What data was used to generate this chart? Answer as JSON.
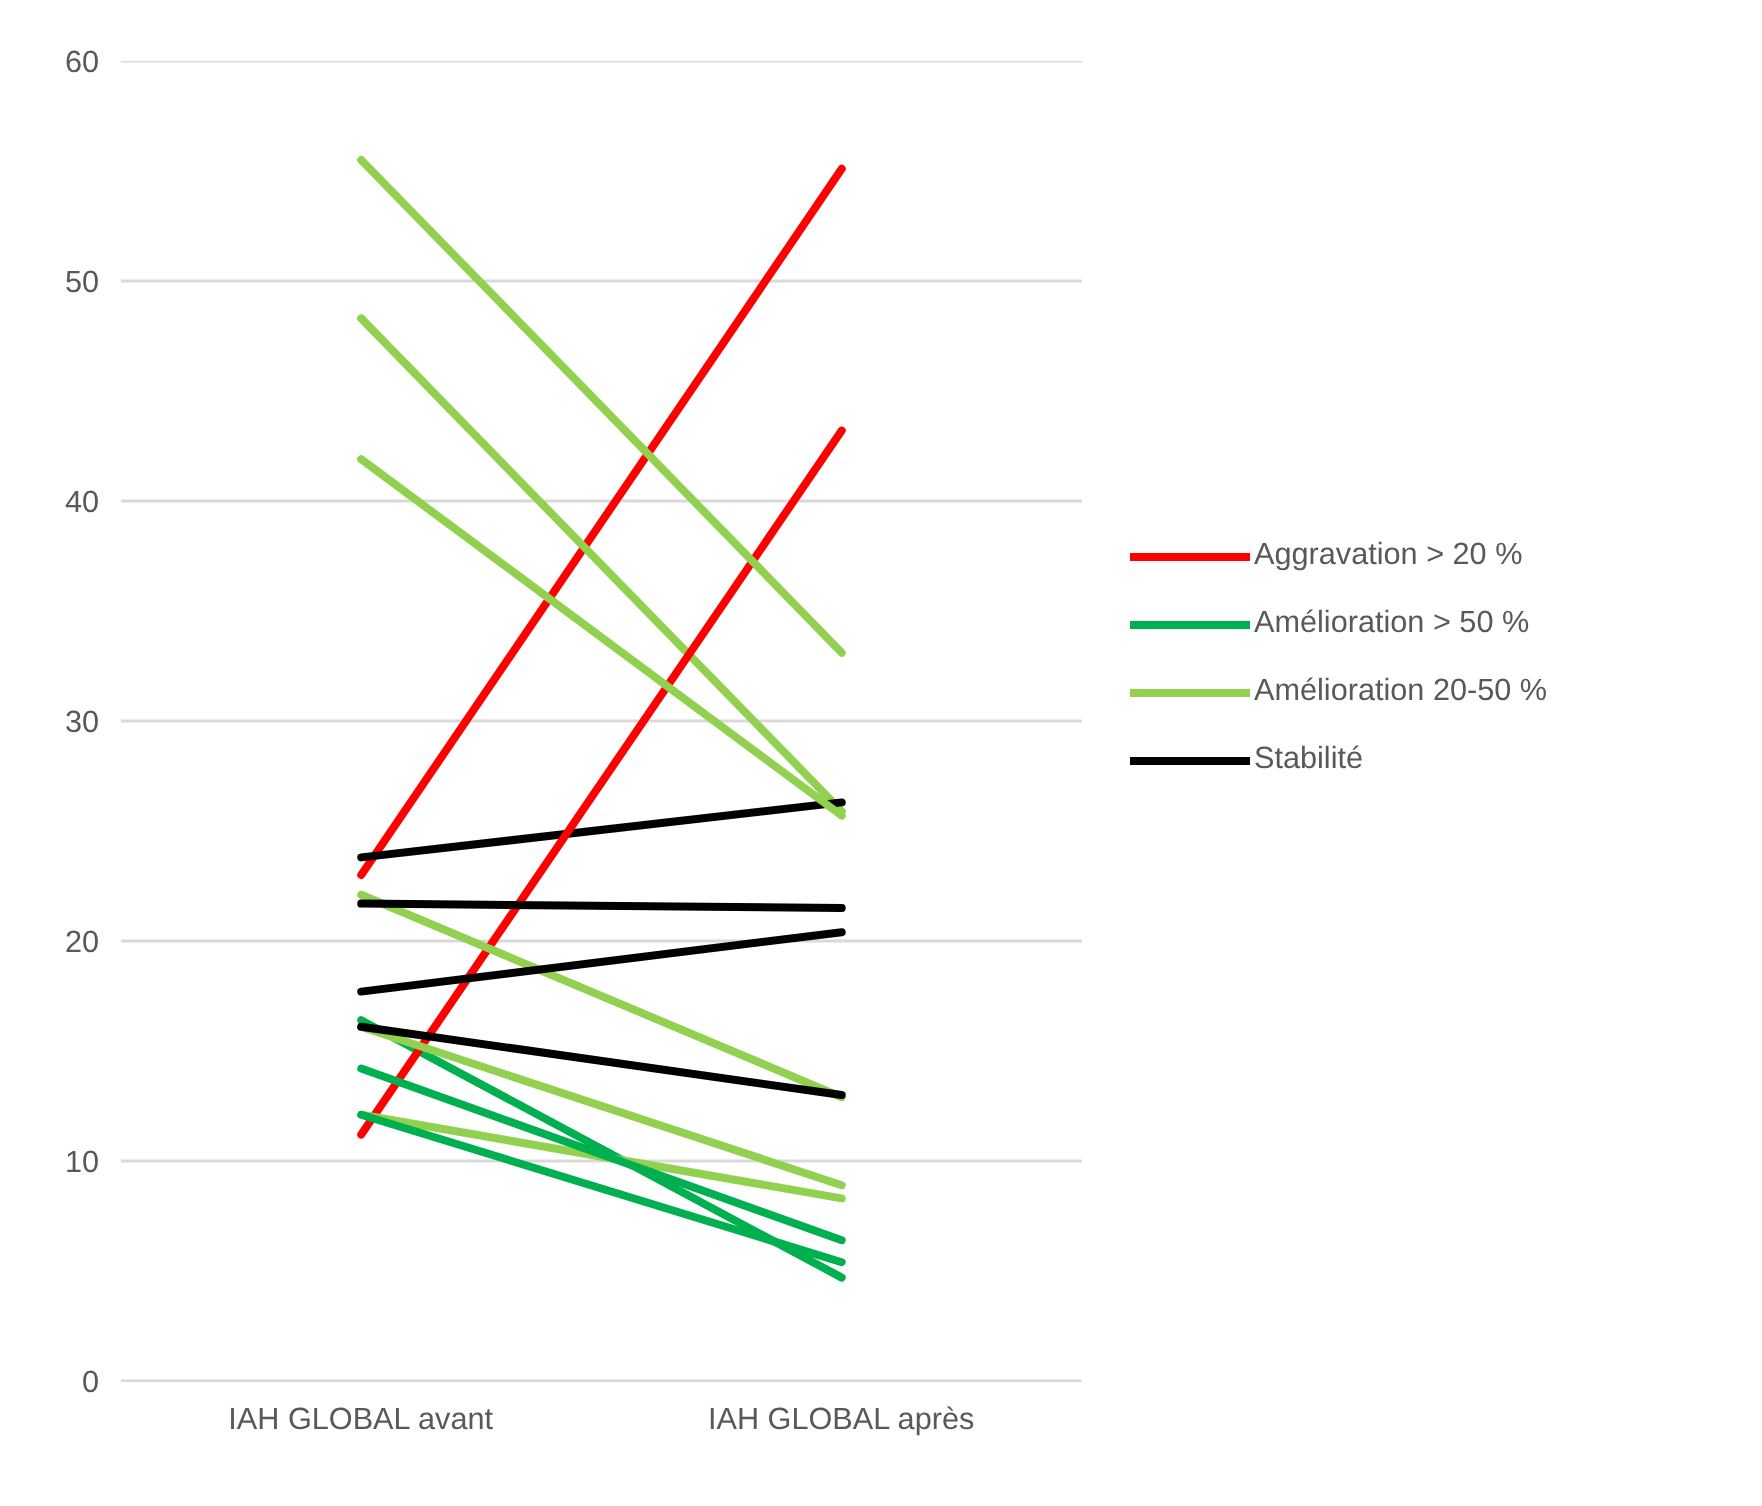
{
  "chart_data": {
    "type": "line",
    "categories": [
      "IAH GLOBAL avant",
      "IAH GLOBAL après"
    ],
    "ylim": [
      0,
      60
    ],
    "yticks": [
      0,
      10,
      20,
      30,
      40,
      50,
      60
    ],
    "grid": "y",
    "legend": "right",
    "marker": "none",
    "line_style": "solid",
    "series": [
      {
        "name": "Aggravation > 20 %",
        "color": "#ff0000",
        "values": [
          23.0,
          55.1
        ]
      },
      {
        "name": "Amélioration > 50 %",
        "color": "#00b050",
        "values": [
          16.4,
          4.7
        ]
      },
      {
        "name": "Amélioration 20-50 %",
        "color": "#92d050",
        "values": [
          48.3,
          25.9
        ]
      },
      {
        "name": "Stabilité",
        "color": "#000000",
        "values": [
          23.8,
          26.3
        ]
      },
      {
        "color": "#ff0000",
        "values": [
          11.2,
          43.2
        ]
      },
      {
        "color": "#92d050",
        "values": [
          55.5,
          33.1
        ]
      },
      {
        "color": "#92d050",
        "values": [
          41.9,
          25.7
        ]
      },
      {
        "color": "#92d050",
        "values": [
          22.1,
          12.9
        ]
      },
      {
        "color": "#92d050",
        "values": [
          16.1,
          8.9
        ]
      },
      {
        "color": "#92d050",
        "values": [
          12.1,
          8.3
        ]
      },
      {
        "color": "#000000",
        "values": [
          21.7,
          21.5
        ]
      },
      {
        "color": "#000000",
        "values": [
          17.7,
          20.4
        ]
      },
      {
        "color": "#000000",
        "values": [
          16.1,
          13.0
        ]
      },
      {
        "color": "#00b050",
        "values": [
          14.2,
          6.4
        ]
      },
      {
        "color": "#00b050",
        "values": [
          12.1,
          5.4
        ]
      }
    ]
  }
}
